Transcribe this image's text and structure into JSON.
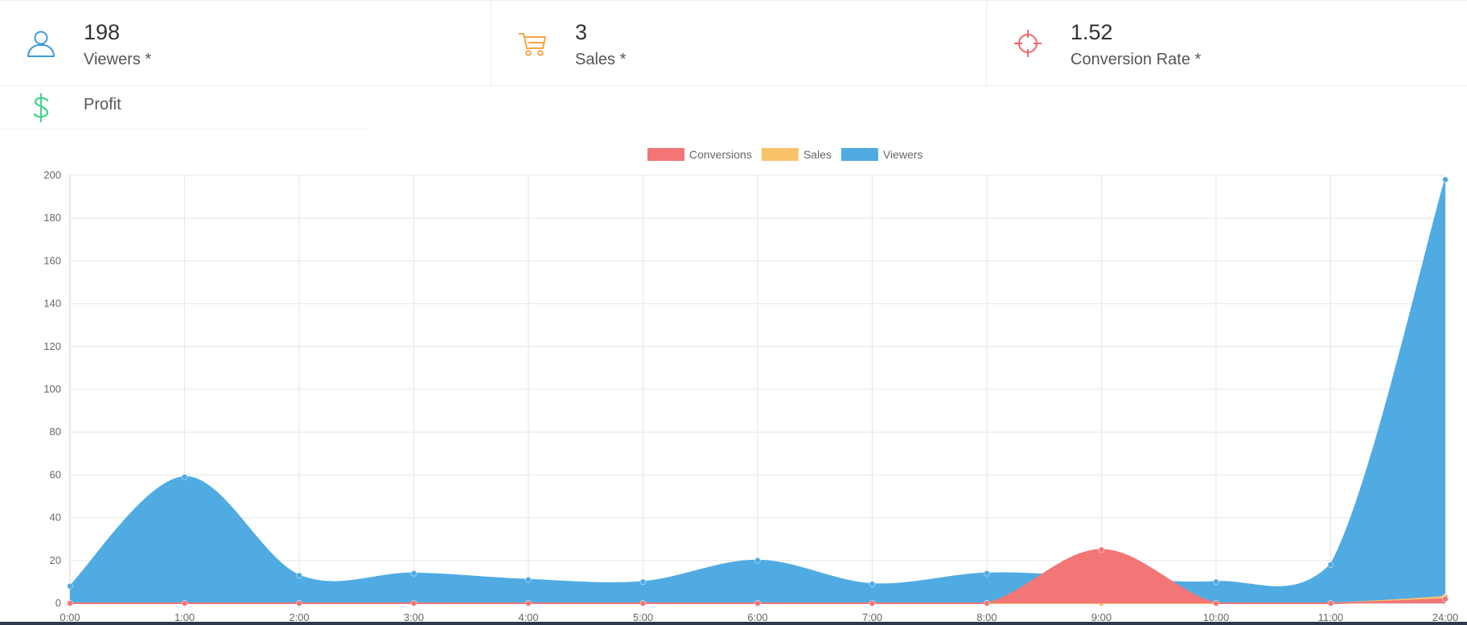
{
  "stats": [
    {
      "value": "198",
      "label": "Viewers *",
      "icon": "user-icon",
      "color": "#3b9ae1"
    },
    {
      "value": "3",
      "label": "Sales *",
      "icon": "cart-icon",
      "color": "#f8a541"
    },
    {
      "value": "1.52",
      "label": "Conversion Rate *",
      "icon": "crosshair-icon",
      "color": "#f0656b"
    }
  ],
  "profit": {
    "label": "Profit",
    "icon": "dollar-icon",
    "color": "#3ed48a"
  },
  "chart_data": {
    "type": "area",
    "x": [
      "0:00",
      "1:00",
      "2:00",
      "3:00",
      "4:00",
      "5:00",
      "6:00",
      "7:00",
      "8:00",
      "9:00",
      "10:00",
      "11:00",
      "24:00"
    ],
    "ylim": [
      0,
      200
    ],
    "yticks": [
      0,
      20,
      40,
      60,
      80,
      100,
      120,
      140,
      160,
      180,
      200
    ],
    "grid": true,
    "legend_position": "top-center",
    "series": [
      {
        "name": "Conversions",
        "color": "#f27676",
        "values": [
          0,
          0,
          0,
          0,
          0,
          0,
          0,
          0,
          0,
          25,
          0,
          0,
          2
        ]
      },
      {
        "name": "Sales",
        "color": "#f9c36b",
        "values": [
          0,
          0,
          0,
          0,
          0,
          0,
          0,
          0,
          0,
          0,
          0,
          0,
          3
        ]
      },
      {
        "name": "Viewers",
        "color": "#50abe2",
        "values": [
          8,
          59,
          13,
          14,
          11,
          10,
          20,
          9,
          14,
          12,
          10,
          18,
          198
        ]
      }
    ]
  }
}
